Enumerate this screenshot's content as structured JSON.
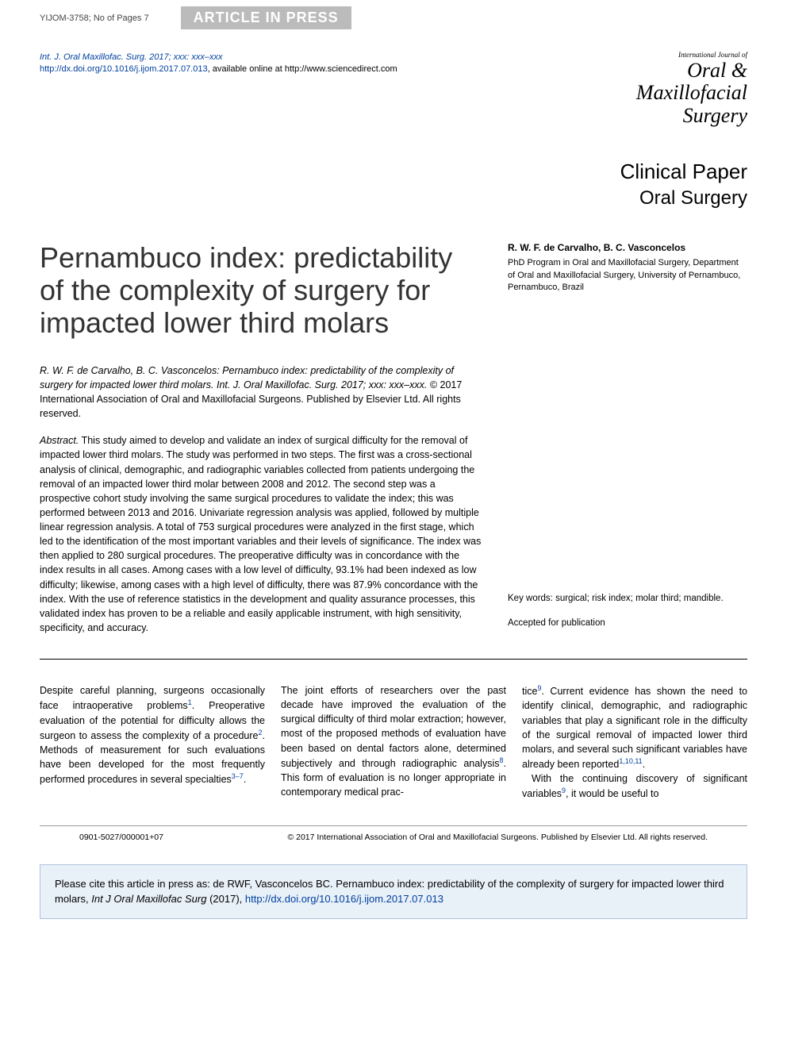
{
  "top": {
    "doc_id": "YIJOM-3758; No of Pages 7",
    "press_banner": "ARTICLE IN PRESS"
  },
  "header": {
    "citation_line1": "Int. J. Oral Maxillofac. Surg. 2017; xxx: xxx–xxx",
    "doi_url": "http://dx.doi.org/10.1016/j.ijom.2017.07.013",
    "available_text": ", available online at http://www.sciencedirect.com",
    "journal_intl": "International Journal of",
    "journal_line1": "Oral &",
    "journal_line2": "Maxillofacial",
    "journal_line3": "Surgery"
  },
  "paper_type": {
    "line1": "Clinical Paper",
    "line2": "Oral Surgery"
  },
  "title": "Pernambuco index: predictability of the complexity of surgery for impacted lower third molars",
  "authors": {
    "names": "R. W. F. de Carvalho, B. C. Vasconcelos",
    "affiliation": "PhD Program in Oral and Maxillofacial Surgery, Department of Oral and Maxillofacial Surgery, University of Pernambuco, Pernambuco, Brazil"
  },
  "running_citation": "R. W. F. de Carvalho, B. C. Vasconcelos: Pernambuco index: predictability of the complexity of surgery for impacted lower third molars. Int. J. Oral Maxillofac. Surg. 2017; xxx: xxx–xxx.",
  "copyright": " © 2017 International Association of Oral and Maxillofacial Surgeons. Published by Elsevier Ltd. All rights reserved.",
  "abstract_label": "Abstract.",
  "abstract_text": " This study aimed to develop and validate an index of surgical difficulty for the removal of impacted lower third molars. The study was performed in two steps. The first was a cross-sectional analysis of clinical, demographic, and radiographic variables collected from patients undergoing the removal of an impacted lower third molar between 2008 and 2012. The second step was a prospective cohort study involving the same surgical procedures to validate the index; this was performed between 2013 and 2016. Univariate regression analysis was applied, followed by multiple linear regression analysis. A total of 753 surgical procedures were analyzed in the first stage, which led to the identification of the most important variables and their levels of significance. The index was then applied to 280 surgical procedures. The preoperative difficulty was in concordance with the index results in all cases. Among cases with a low level of difficulty, 93.1% had been indexed as low difficulty; likewise, among cases with a high level of difficulty, there was 87.9% concordance with the index. With the use of reference statistics in the development and quality assurance processes, this validated index has proven to be a reliable and easily applicable instrument, with high sensitivity, specificity, and accuracy.",
  "keywords_label": "Key words:",
  "keywords_text": " surgical; risk index; molar third; mandible.",
  "accepted_label": "Accepted for publication",
  "body": {
    "col1": "Despite careful planning, surgeons occasionally face intraoperative problems",
    "col1_ref1": "1",
    "col1_b": ". Preoperative evaluation of the potential for difficulty allows the surgeon to assess the complexity of a procedure",
    "col1_ref2": "2",
    "col1_c": ". Methods of measurement for such evaluations have been developed for the most frequently performed procedures in several specialties",
    "col1_ref3": "3–7",
    "col1_d": ".",
    "col2_a": "The joint efforts of researchers over the past decade have improved the evaluation of the surgical difficulty of third molar extraction; however, most of the proposed methods of evaluation have been based on dental factors alone, determined subjectively and through radiographic analysis",
    "col2_ref1": "8",
    "col2_b": ". This form of evaluation is no longer appropriate in contemporary medical prac-",
    "col3_a": "tice",
    "col3_ref1": "9",
    "col3_b": ". Current evidence has shown the need to identify clinical, demographic, and radiographic variables that play a significant role in the difficulty of the surgical removal of impacted lower third molars, and several such significant variables have already been reported",
    "col3_ref2": "1,10,11",
    "col3_c": ".",
    "col3_d": "With the continuing discovery of significant variables",
    "col3_ref3": "9",
    "col3_e": ", it would be useful to"
  },
  "footer": {
    "left": "0901-5027/000001+07",
    "right": "© 2017 International Association of Oral and Maxillofacial Surgeons. Published by Elsevier Ltd. All rights reserved."
  },
  "cite_box": {
    "text": "Please cite this article in press as: de RWF, Vasconcelos BC. Pernambuco index: predictability of the complexity of surgery for impacted lower third molars, ",
    "journal": "Int J Oral Maxillofac Surg",
    "year": " (2017), ",
    "doi": "http://dx.doi.org/10.1016/j.ijom.2017.07.013"
  },
  "colors": {
    "link_blue": "#0040a0",
    "banner_gray": "#bbbbbb",
    "cite_box_bg": "#e8f0f8",
    "cite_box_border": "#b0c4de"
  }
}
